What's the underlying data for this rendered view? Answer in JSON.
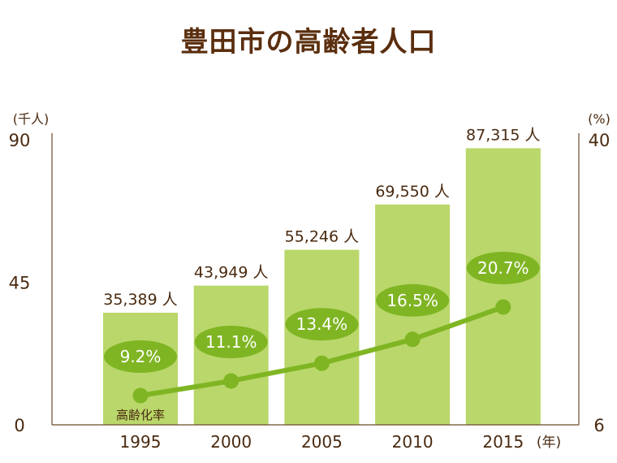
{
  "chart_data": {
    "type": "bar",
    "title": "豊田市の高齢者人口",
    "categories": [
      "1995",
      "2000",
      "2005",
      "2010",
      "2015"
    ],
    "series": [
      {
        "name": "",
        "axis": "left",
        "values": [
          35389,
          43949,
          55246,
          69550,
          87315
        ],
        "labels": [
          "35,389 人",
          "43,949 人",
          "55,246 人",
          "69,550 人",
          "87,315 人"
        ]
      },
      {
        "name": "高齢化率",
        "type": "line",
        "axis": "right",
        "values": [
          9.2,
          11.1,
          13.4,
          16.5,
          20.7
        ],
        "labels": [
          "9.2%",
          "11.1%",
          "13.4%",
          "16.5%",
          "20.7%"
        ]
      }
    ],
    "y_left": {
      "unit": "(千人)",
      "ylim": [
        0,
        90
      ],
      "ticks": [
        "0",
        "45",
        "90"
      ]
    },
    "y_right": {
      "unit": "(%)",
      "ticks": [
        "6",
        "40"
      ]
    },
    "x_unit": "(年)",
    "colors": {
      "bar": "#b9d76a",
      "line": "#7fb523",
      "text": "#4a2a10",
      "title": "#5a2e0e",
      "axis": "#6b4a2a"
    },
    "grid": false
  }
}
